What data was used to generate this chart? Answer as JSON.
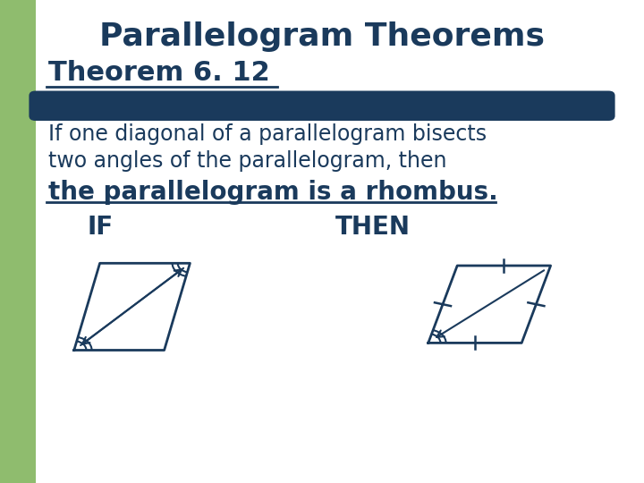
{
  "title": "Parallelogram Theorems",
  "subtitle": "Theorem 6. 12",
  "bar_color": "#1a3a5c",
  "text_color": "#1a3a5c",
  "bg_color": "#ffffff",
  "left_bar_color": "#8fbc6e",
  "body_text1": "If one diagonal of a parallelogram bisects",
  "body_text2": "two angles of the parallelogram, then",
  "body_text3": "the parallelogram is a rhombus.",
  "if_label": "IF",
  "then_label": "THEN",
  "title_fontsize": 26,
  "subtitle_fontsize": 22,
  "body_fontsize": 17,
  "emphasis_fontsize": 20,
  "label_fontsize": 20
}
